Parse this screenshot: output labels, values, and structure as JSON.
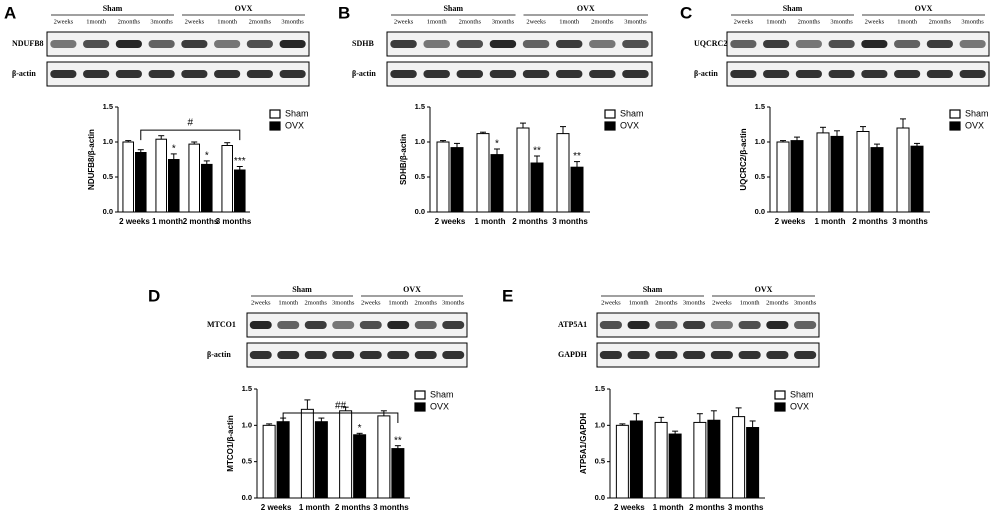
{
  "chart_data": [
    {
      "type": "bar",
      "panel": "A",
      "ylabel": "NDUFB8/β-actin",
      "categories": [
        "2 weeks",
        "1 month",
        "2 months",
        "3 months"
      ],
      "series": [
        {
          "name": "Sham",
          "color": "#ffffff",
          "values": [
            1.0,
            1.04,
            0.97,
            0.95
          ],
          "errors": [
            0.02,
            0.05,
            0.03,
            0.04
          ],
          "annotations": [
            null,
            null,
            null,
            null
          ]
        },
        {
          "name": "OVX",
          "color": "#000000",
          "values": [
            0.85,
            0.75,
            0.68,
            0.6
          ],
          "errors": [
            0.04,
            0.08,
            0.05,
            0.05
          ],
          "annotations": [
            null,
            "*",
            "*",
            "***"
          ]
        }
      ],
      "comparison": "#",
      "ylim": [
        0,
        1.5
      ],
      "yticks": [
        {
          "value": 0,
          "label": "0.0"
        },
        0.5,
        {
          "value": 1,
          "label": "1.0"
        },
        1.5
      ]
    },
    {
      "type": "bar",
      "panel": "B",
      "ylabel": "SDHB/β-actin",
      "categories": [
        "2 weeks",
        "1 month",
        "2 months",
        "3 months"
      ],
      "series": [
        {
          "name": "Sham",
          "color": "#ffffff",
          "values": [
            1.0,
            1.12,
            1.2,
            1.12
          ],
          "errors": [
            0.02,
            0.02,
            0.07,
            0.1
          ],
          "annotations": [
            null,
            null,
            null,
            null
          ]
        },
        {
          "name": "OVX",
          "color": "#000000",
          "values": [
            0.92,
            0.82,
            0.7,
            0.64
          ],
          "errors": [
            0.06,
            0.08,
            0.1,
            0.08
          ],
          "annotations": [
            null,
            "*",
            "**",
            "**"
          ]
        }
      ],
      "ylim": [
        0,
        1.5
      ],
      "yticks": [
        {
          "value": 0,
          "label": "0.0"
        },
        0.5,
        {
          "value": 1,
          "label": "1.0"
        },
        1.5
      ]
    },
    {
      "type": "bar",
      "panel": "C",
      "ylabel": "UQCRC2/β-actin",
      "categories": [
        "2 weeks",
        "1 month",
        "2 months",
        "3 months"
      ],
      "series": [
        {
          "name": "Sham",
          "color": "#ffffff",
          "values": [
            1.0,
            1.13,
            1.15,
            1.2
          ],
          "errors": [
            0.02,
            0.08,
            0.07,
            0.13
          ],
          "annotations": [
            null,
            null,
            null,
            null
          ]
        },
        {
          "name": "OVX",
          "color": "#000000",
          "values": [
            1.02,
            1.08,
            0.92,
            0.94
          ],
          "errors": [
            0.05,
            0.08,
            0.05,
            0.04
          ],
          "annotations": [
            null,
            null,
            null,
            null
          ]
        }
      ],
      "ylim": [
        0,
        1.5
      ],
      "yticks": [
        {
          "value": 0,
          "label": "0.0"
        },
        0.5,
        {
          "value": 1,
          "label": "1.0"
        },
        1.5
      ]
    },
    {
      "type": "bar",
      "panel": "D",
      "ylabel": "MTCO1/β-actin",
      "categories": [
        "2 weeks",
        "1 month",
        "2 months",
        "3 months"
      ],
      "series": [
        {
          "name": "Sham",
          "color": "#ffffff",
          "values": [
            1.0,
            1.22,
            1.2,
            1.13
          ],
          "errors": [
            0.02,
            0.13,
            0.05,
            0.07
          ],
          "annotations": [
            null,
            null,
            null,
            null
          ]
        },
        {
          "name": "OVX",
          "color": "#000000",
          "values": [
            1.05,
            1.05,
            0.87,
            0.68
          ],
          "errors": [
            0.05,
            0.05,
            0.02,
            0.04
          ],
          "annotations": [
            null,
            null,
            "*",
            "**"
          ]
        }
      ],
      "comparison": "##",
      "ylim": [
        0,
        1.5
      ],
      "yticks": [
        {
          "value": 0,
          "label": "0.0"
        },
        0.5,
        {
          "value": 1,
          "label": "1.0"
        },
        1.5
      ]
    },
    {
      "type": "bar",
      "panel": "E",
      "ylabel": "ATP5A1/GAPDH",
      "categories": [
        "2 weeks",
        "1 month",
        "2 months",
        "3 months"
      ],
      "series": [
        {
          "name": "Sham",
          "color": "#ffffff",
          "values": [
            1.0,
            1.04,
            1.04,
            1.12
          ],
          "errors": [
            0.02,
            0.07,
            0.12,
            0.12
          ],
          "annotations": [
            null,
            null,
            null,
            null
          ]
        },
        {
          "name": "OVX",
          "color": "#000000",
          "values": [
            1.06,
            0.88,
            1.07,
            0.97
          ],
          "errors": [
            0.1,
            0.04,
            0.13,
            0.09
          ],
          "annotations": [
            null,
            null,
            null,
            null
          ]
        }
      ],
      "ylim": [
        0,
        1.5
      ],
      "yticks": [
        {
          "value": 0,
          "label": "0.0"
        },
        0.5,
        {
          "value": 1,
          "label": "1.0"
        },
        1.5
      ]
    }
  ],
  "blots": [
    {
      "groups": [
        "Sham",
        "OVX"
      ],
      "lanes": [
        "2weeks",
        "1month",
        "2months",
        "3months"
      ],
      "rows": [
        "NDUFB8",
        "β-actin"
      ]
    },
    {
      "groups": [
        "Sham",
        "OVX"
      ],
      "lanes": [
        "2weeks",
        "1month",
        "2months",
        "3months"
      ],
      "rows": [
        "SDHB",
        "β-actin"
      ]
    },
    {
      "groups": [
        "Sham",
        "OVX"
      ],
      "lanes": [
        "2weeks",
        "1month",
        "2months",
        "3months"
      ],
      "rows": [
        "UQCRC2",
        "β-actin"
      ]
    },
    {
      "groups": [
        "Sham",
        "OVX"
      ],
      "lanes": [
        "2weeks",
        "1month",
        "2months",
        "3months"
      ],
      "rows": [
        "MTCO1",
        "β-actin"
      ]
    },
    {
      "groups": [
        "Sham",
        "OVX"
      ],
      "lanes": [
        "2weeks",
        "1month",
        "2months",
        "3months"
      ],
      "rows": [
        "ATP5A1",
        "GAPDH"
      ]
    }
  ]
}
